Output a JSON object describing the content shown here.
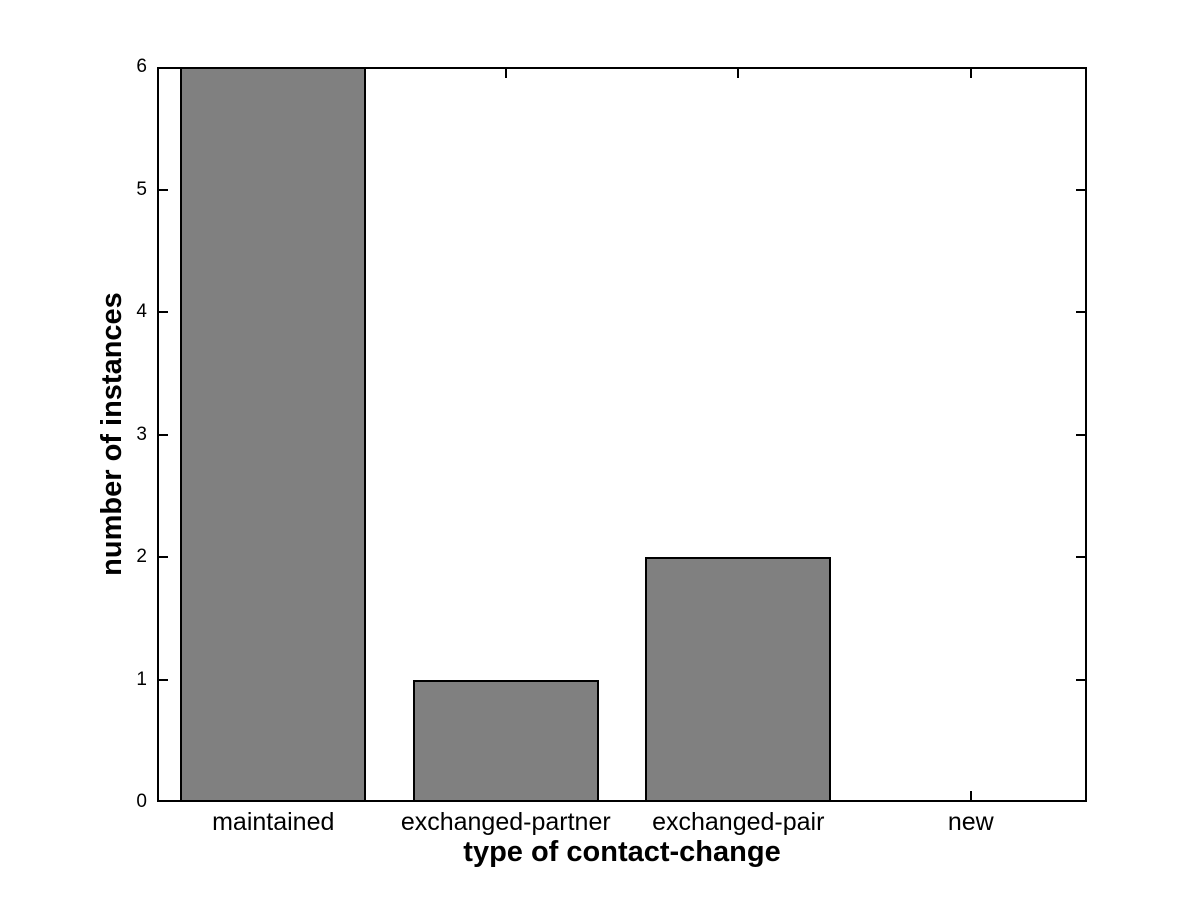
{
  "chart_data": {
    "type": "bar",
    "categories": [
      "maintained",
      "exchanged-partner",
      "exchanged-pair",
      "new"
    ],
    "values": [
      6,
      1,
      2,
      0
    ],
    "title": "",
    "xlabel": "type of contact-change",
    "ylabel": "number of instances",
    "ylim": [
      0,
      6
    ],
    "yticks": [
      0,
      1,
      2,
      3,
      4,
      5,
      6
    ],
    "bar_width_fraction": 0.8,
    "grid": false,
    "legend": null,
    "colors": {
      "bar_fill": "#808080",
      "bar_edge": "#000000",
      "axis": "#000000",
      "text": "#000000",
      "background": "#ffffff"
    }
  }
}
